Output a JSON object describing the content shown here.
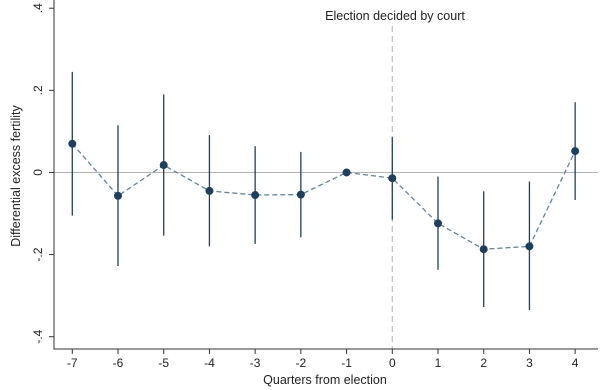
{
  "chart_data": {
    "type": "scatter",
    "xlabel": "Quarters from election",
    "ylabel": "Differential excess fertility",
    "annotation": "Election decided by court",
    "xlim": [
      -7.4,
      4.5
    ],
    "ylim": [
      -0.43,
      0.42
    ],
    "x_ticks": [
      -7,
      -6,
      -5,
      -4,
      -3,
      -2,
      -1,
      0,
      1,
      2,
      3,
      4
    ],
    "x_tick_labels": [
      "-7",
      "-6",
      "-5",
      "-4",
      "-3",
      "-2",
      "-1",
      "0",
      "1",
      "2",
      "3",
      "4"
    ],
    "y_ticks": [
      -0.4,
      -0.2,
      0,
      0.2,
      0.4
    ],
    "y_tick_labels": [
      "-.4",
      "-.2",
      "0",
      ".2",
      ".4"
    ],
    "reference_lines": {
      "horizontal_y": 0,
      "vertical_x": 0
    },
    "grid": false,
    "points": [
      {
        "x": -7,
        "y": 0.07,
        "ci_low": -0.105,
        "ci_high": 0.245
      },
      {
        "x": -6,
        "y": -0.057,
        "ci_low": -0.228,
        "ci_high": 0.115
      },
      {
        "x": -5,
        "y": 0.018,
        "ci_low": -0.154,
        "ci_high": 0.19
      },
      {
        "x": -4,
        "y": -0.045,
        "ci_low": -0.18,
        "ci_high": 0.091
      },
      {
        "x": -3,
        "y": -0.055,
        "ci_low": -0.174,
        "ci_high": 0.064
      },
      {
        "x": -2,
        "y": -0.054,
        "ci_low": -0.158,
        "ci_high": 0.05
      },
      {
        "x": -1,
        "y": 0.0,
        "ci_low": 0.0,
        "ci_high": 0.0
      },
      {
        "x": 0,
        "y": -0.014,
        "ci_low": -0.115,
        "ci_high": 0.086
      },
      {
        "x": 1,
        "y": -0.124,
        "ci_low": -0.237,
        "ci_high": -0.01
      },
      {
        "x": 2,
        "y": -0.187,
        "ci_low": -0.328,
        "ci_high": -0.046
      },
      {
        "x": 3,
        "y": -0.18,
        "ci_low": -0.335,
        "ci_high": -0.022
      },
      {
        "x": 4,
        "y": 0.052,
        "ci_low": -0.067,
        "ci_high": 0.171
      }
    ],
    "colors": {
      "marker": "#1f3f5f",
      "ci_line": "#1f3f5f",
      "connector": "#5e83aa",
      "zero_line": "#b3b3b3",
      "event_line": "#bdbdbd",
      "axis": "#333333"
    }
  }
}
